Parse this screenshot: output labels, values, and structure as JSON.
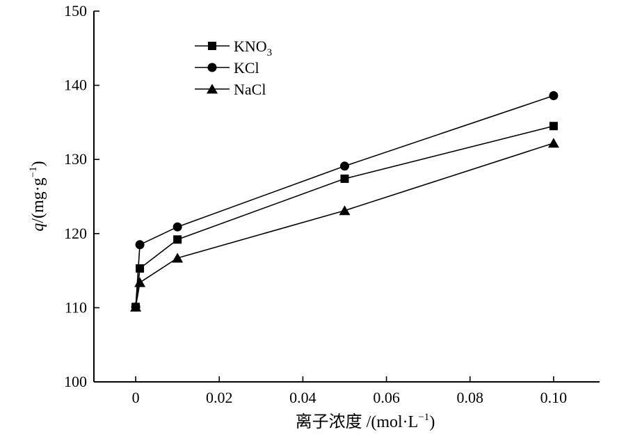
{
  "chart_data": {
    "type": "line",
    "title": "",
    "xlabel": "离子浓度 /(mol·L",
    "xlabel_sup": "−1",
    "xlabel_tail": ")",
    "ylabel_var": "q",
    "ylabel_unit": "/(mg·g",
    "ylabel_sup": "−1",
    "ylabel_tail": ")",
    "xlim": [
      -0.01,
      0.111
    ],
    "ylim": [
      100,
      150
    ],
    "x_ticks": [
      0,
      0.02,
      0.04,
      0.06,
      0.08,
      0.1
    ],
    "x_tick_labels": [
      "0",
      "0.02",
      "0.04",
      "0.06",
      "0.08",
      "0.10"
    ],
    "y_ticks": [
      100,
      110,
      120,
      130,
      140,
      150
    ],
    "y_tick_labels": [
      "100",
      "110",
      "120",
      "130",
      "140",
      "150"
    ],
    "grid": false,
    "legend_position": "top-left",
    "series": [
      {
        "name": "KNO",
        "name_sub": "3",
        "marker": "square",
        "x": [
          0,
          0.001,
          0.01,
          0.05,
          0.1
        ],
        "values": [
          110.1,
          115.3,
          119.2,
          127.4,
          134.5
        ]
      },
      {
        "name": "KCl",
        "name_sub": "",
        "marker": "circle",
        "x": [
          0,
          0.001,
          0.01,
          0.05,
          0.1
        ],
        "values": [
          110.1,
          118.5,
          120.9,
          129.1,
          138.6
        ]
      },
      {
        "name": "NaCl",
        "name_sub": "",
        "marker": "triangle",
        "x": [
          0,
          0.001,
          0.01,
          0.05,
          0.1
        ],
        "values": [
          110.1,
          113.4,
          116.7,
          123.1,
          132.2
        ]
      }
    ]
  }
}
